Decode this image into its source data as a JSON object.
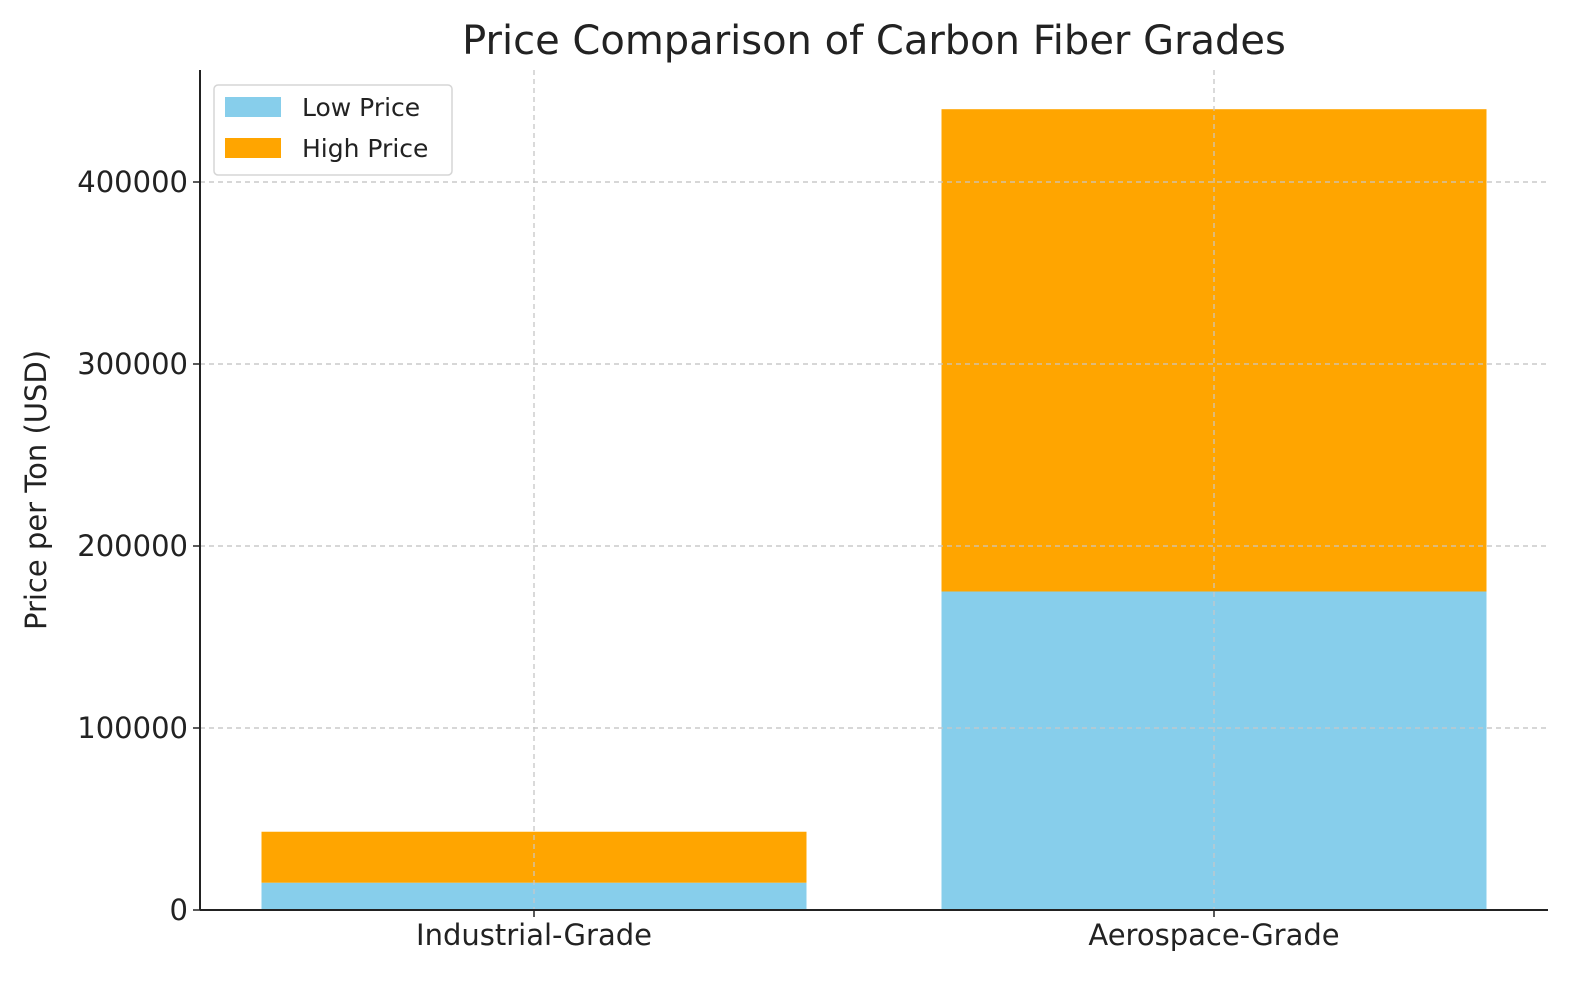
{
  "chart_data": {
    "type": "bar",
    "stacked": true,
    "title": "Price Comparison of Carbon Fiber Grades",
    "xlabel": "",
    "ylabel": "Price per Ton (USD)",
    "categories": [
      "Industrial-Grade",
      "Aerospace-Grade"
    ],
    "series": [
      {
        "name": "Low Price",
        "color": "#87CEEB",
        "values": [
          15000,
          175000
        ]
      },
      {
        "name": "High Price",
        "color": "#FFA500",
        "values": [
          28000,
          265000
        ]
      }
    ],
    "ylim": [
      0,
      462000
    ],
    "yticks": [
      0,
      100000,
      200000,
      300000,
      400000
    ],
    "ytick_labels": [
      "0",
      "100000",
      "200000",
      "300000",
      "400000"
    ],
    "grid": true,
    "legend": "top-left"
  }
}
